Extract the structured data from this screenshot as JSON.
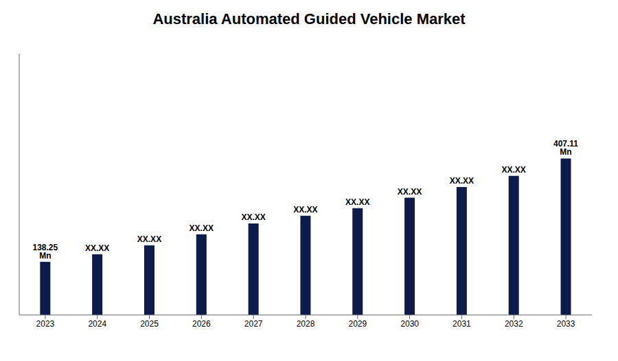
{
  "chart_data": {
    "type": "bar",
    "title": "Australia Automated Guided Vehicle Market",
    "categories": [
      "2023",
      "2024",
      "2025",
      "2026",
      "2027",
      "2028",
      "2029",
      "2030",
      "2031",
      "2032",
      "2033"
    ],
    "values": [
      138.25,
      158,
      181,
      210,
      238,
      258,
      278,
      305,
      333,
      362,
      407.11
    ],
    "value_labels": [
      "138.25 Mn",
      "XX.XX",
      "XX.XX",
      "XX.XX",
      "XX.XX",
      "XX.XX",
      "XX.XX",
      "XX.XX",
      "XX.XX",
      "XX.XX",
      "407.11 Mn"
    ],
    "color": "#0d1b4b",
    "ylim": [
      0,
      680
    ],
    "grid": false,
    "tick_labels": "x"
  }
}
